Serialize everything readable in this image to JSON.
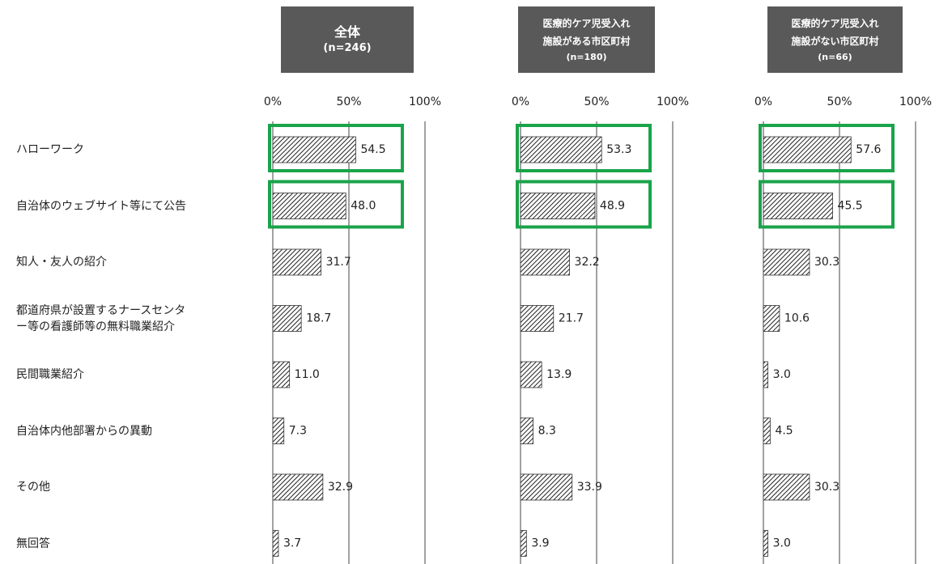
{
  "chart_data": [
    {
      "type": "bar",
      "orientation": "horizontal",
      "title": "全体",
      "subtitle": "(n=246)",
      "categories": [
        "ハローワーク",
        "自治体のウェブサイト等にて公告",
        "知人・友人の紹介",
        "都道府県が設置するナースセンター等の看護師等の無料職業紹介",
        "民間職業紹介",
        "自治体内他部署からの異動",
        "その他",
        "無回答"
      ],
      "values": [
        54.5,
        48.0,
        31.7,
        18.7,
        11.0,
        7.3,
        32.9,
        3.7
      ],
      "value_labels": [
        "54.5",
        "48.0",
        "31.7",
        "18.7",
        "11.0",
        "7.3",
        "32.9",
        "3.7"
      ],
      "xlim": [
        0,
        100
      ],
      "xticks": [
        {
          "value": 0,
          "label": "0%"
        },
        {
          "value": 50,
          "label": "50%"
        },
        {
          "value": 100,
          "label": "100%"
        }
      ],
      "grid": true
    },
    {
      "type": "bar",
      "orientation": "horizontal",
      "title": "医療的ケア児受入れ施設がある市区町村",
      "subtitle": "(n=180)",
      "values": [
        53.3,
        48.9,
        32.2,
        21.7,
        13.9,
        8.3,
        33.9,
        3.9
      ],
      "value_labels": [
        "53.3",
        "48.9",
        "32.2",
        "21.7",
        "13.9",
        "8.3",
        "33.9",
        "3.9"
      ],
      "xlim": [
        0,
        100
      ],
      "xticks": [
        {
          "value": 0,
          "label": "0%"
        },
        {
          "value": 50,
          "label": "50%"
        },
        {
          "value": 100,
          "label": "100%"
        }
      ],
      "grid": true
    },
    {
      "type": "bar",
      "orientation": "horizontal",
      "title": "医療的ケア児受入れ施設がない市区町村",
      "subtitle": "(n=66)",
      "values": [
        57.6,
        45.5,
        30.3,
        10.6,
        3.0,
        4.5,
        30.3,
        3.0
      ],
      "value_labels": [
        "57.6",
        "45.5",
        "30.3",
        "10.6",
        "3.0",
        "4.5",
        "30.3",
        "3.0"
      ],
      "xlim": [
        0,
        100
      ],
      "xticks": [
        {
          "value": 0,
          "label": "0%"
        },
        {
          "value": 50,
          "label": "50%"
        },
        {
          "value": 100,
          "label": "100%"
        }
      ],
      "grid": true
    }
  ]
}
